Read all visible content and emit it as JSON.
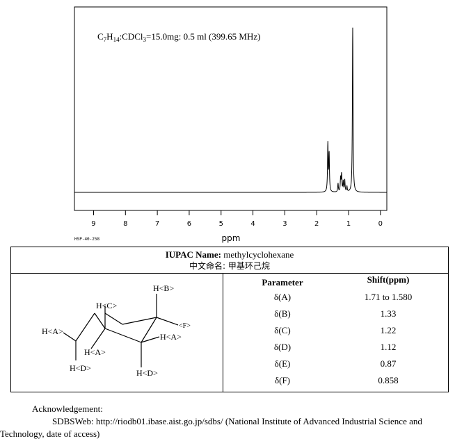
{
  "chart_data": {
    "type": "line",
    "title": "",
    "xlabel": "ppm",
    "ylabel": "",
    "xlim": [
      9.6,
      -0.2
    ],
    "x_ticks": [
      9,
      8,
      7,
      6,
      5,
      4,
      3,
      2,
      1,
      0
    ],
    "annotation": {
      "formula_c": "C",
      "formula_c_sub": "7",
      "formula_h": "H",
      "formula_h_sub": "14",
      "formula_cdcl": ":CDCl",
      "formula_cdcl_sub": "3",
      "conditions": "=15.0mg: 0.5 ml (399.65 MHz)"
    },
    "code": "HSP-40-258",
    "series": [
      {
        "peaks": [
          {
            "x": 1.65,
            "height": 0.28
          },
          {
            "x": 1.61,
            "height": 0.22
          },
          {
            "x": 1.33,
            "height": 0.05
          },
          {
            "x": 1.25,
            "height": 0.08
          },
          {
            "x": 1.22,
            "height": 0.1
          },
          {
            "x": 1.17,
            "height": 0.06
          },
          {
            "x": 1.12,
            "height": 0.07
          },
          {
            "x": 1.05,
            "height": 0.03
          },
          {
            "x": 0.87,
            "height": 0.96
          }
        ]
      }
    ]
  },
  "compound": {
    "iupac_label": "IUPAC Name:",
    "iupac_name": "methylcyclohexane",
    "chinese_label": "中文命名:",
    "chinese_name": "甲基环己烷"
  },
  "structure_labels": {
    "hb": "H<B>",
    "hc": "H<C>",
    "ha_left": "H<A>",
    "ha_mid": "H<A>",
    "ha_right": "H<A>",
    "f": "<F>",
    "hd_left": "H<D>",
    "hd_right": "H<D>"
  },
  "shifts": {
    "param_header": "Parameter",
    "shift_header": "Shift(ppm)",
    "rows": [
      {
        "param": "δ(A)",
        "shift": "1.71 to 1.580"
      },
      {
        "param": "δ(B)",
        "shift": "1.33"
      },
      {
        "param": "δ(C)",
        "shift": "1.22"
      },
      {
        "param": "δ(D)",
        "shift": "1.12"
      },
      {
        "param": "δ(E)",
        "shift": "0.87"
      },
      {
        "param": "δ(F)",
        "shift": "0.858"
      }
    ]
  },
  "acknowledgement": {
    "title": "Acknowledgement:",
    "line1": "SDBSWeb: http://riodb01.ibase.aist.go.jp/sdbs/ (National Institute of Advanced Industrial Science and",
    "line2": "Technology, date of access)"
  }
}
